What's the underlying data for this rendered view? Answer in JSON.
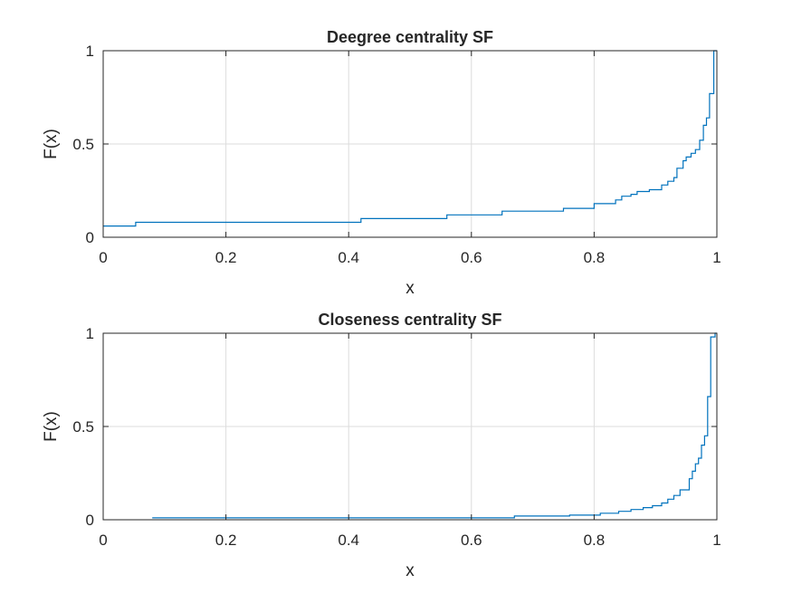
{
  "colors": {
    "line": "#0072BD",
    "grid": "#dcdcdc",
    "axis": "#262626",
    "background": "#ffffff"
  },
  "chart_data": [
    {
      "type": "line",
      "step": true,
      "title": "Deegree centrality SF",
      "xlabel": "x",
      "ylabel": "F(x)",
      "xlim": [
        0,
        1
      ],
      "ylim": [
        0,
        1
      ],
      "xticks": [
        "0",
        "0.2",
        "0.4",
        "0.6",
        "0.8",
        "1"
      ],
      "yticks": [
        "0",
        "0.5",
        "1"
      ],
      "grid": true,
      "series": [
        {
          "x": [
            0,
            0.053,
            0.42,
            0.56,
            0.65,
            0.75,
            0.8,
            0.835,
            0.845,
            0.86,
            0.87,
            0.89,
            0.91,
            0.92,
            0.93,
            0.935,
            0.945,
            0.95,
            0.958,
            0.965,
            0.972,
            0.978,
            0.983,
            0.988,
            0.995,
            1.0
          ],
          "y": [
            0.06,
            0.08,
            0.1,
            0.12,
            0.14,
            0.155,
            0.18,
            0.2,
            0.22,
            0.23,
            0.245,
            0.255,
            0.28,
            0.3,
            0.32,
            0.37,
            0.41,
            0.43,
            0.45,
            0.47,
            0.52,
            0.6,
            0.64,
            0.77,
            1.0,
            1.0
          ]
        }
      ]
    },
    {
      "type": "line",
      "step": true,
      "title": "Closeness centrality SF",
      "xlabel": "x",
      "ylabel": "F(x)",
      "xlim": [
        0,
        1
      ],
      "ylim": [
        0,
        1
      ],
      "xticks": [
        "0",
        "0.2",
        "0.4",
        "0.6",
        "0.8",
        "1"
      ],
      "yticks": [
        "0",
        "0.5",
        "1"
      ],
      "grid": true,
      "series": [
        {
          "x": [
            0.08,
            0.67,
            0.76,
            0.81,
            0.84,
            0.86,
            0.88,
            0.895,
            0.91,
            0.92,
            0.93,
            0.94,
            0.955,
            0.96,
            0.965,
            0.97,
            0.975,
            0.98,
            0.985,
            0.99,
            0.997,
            1.0
          ],
          "y": [
            0.01,
            0.02,
            0.025,
            0.035,
            0.045,
            0.055,
            0.065,
            0.075,
            0.09,
            0.11,
            0.13,
            0.16,
            0.22,
            0.26,
            0.3,
            0.33,
            0.4,
            0.45,
            0.66,
            0.98,
            1.0,
            1.0
          ]
        }
      ]
    }
  ]
}
